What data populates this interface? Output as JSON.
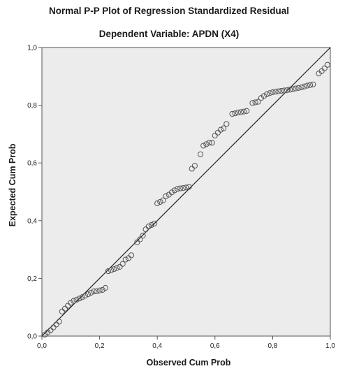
{
  "chart_data": {
    "type": "scatter",
    "title": "Normal P-P Plot of Regression Standardized Residual",
    "subtitle": "Dependent Variable: APDN (X4)",
    "xlabel": "Observed Cum Prob",
    "ylabel": "Expected Cum Prob",
    "xlim": [
      0,
      1
    ],
    "ylim": [
      0,
      1
    ],
    "x_ticks": [
      "0,0",
      "0,2",
      "0,4",
      "0,6",
      "0,8",
      "1,0"
    ],
    "y_ticks": [
      "0,0",
      "0,2",
      "0,4",
      "0,6",
      "0,8",
      "1,0"
    ],
    "reference_line": [
      [
        0,
        0
      ],
      [
        1,
        1
      ]
    ],
    "grid": false,
    "colors": {
      "plot_background": "#ececec",
      "marker": "#555555",
      "line": "#222222"
    },
    "points": [
      [
        0.01,
        0.005
      ],
      [
        0.02,
        0.013
      ],
      [
        0.03,
        0.02
      ],
      [
        0.04,
        0.03
      ],
      [
        0.05,
        0.04
      ],
      [
        0.06,
        0.05
      ],
      [
        0.07,
        0.085
      ],
      [
        0.08,
        0.095
      ],
      [
        0.09,
        0.105
      ],
      [
        0.1,
        0.115
      ],
      [
        0.11,
        0.122
      ],
      [
        0.12,
        0.126
      ],
      [
        0.13,
        0.13
      ],
      [
        0.14,
        0.135
      ],
      [
        0.15,
        0.14
      ],
      [
        0.16,
        0.145
      ],
      [
        0.17,
        0.15
      ],
      [
        0.18,
        0.155
      ],
      [
        0.19,
        0.155
      ],
      [
        0.2,
        0.158
      ],
      [
        0.21,
        0.16
      ],
      [
        0.22,
        0.167
      ],
      [
        0.23,
        0.225
      ],
      [
        0.24,
        0.228
      ],
      [
        0.25,
        0.232
      ],
      [
        0.26,
        0.236
      ],
      [
        0.27,
        0.24
      ],
      [
        0.28,
        0.25
      ],
      [
        0.29,
        0.265
      ],
      [
        0.3,
        0.27
      ],
      [
        0.31,
        0.28
      ],
      [
        0.33,
        0.325
      ],
      [
        0.34,
        0.335
      ],
      [
        0.35,
        0.348
      ],
      [
        0.36,
        0.37
      ],
      [
        0.37,
        0.38
      ],
      [
        0.38,
        0.385
      ],
      [
        0.39,
        0.39
      ],
      [
        0.4,
        0.46
      ],
      [
        0.41,
        0.465
      ],
      [
        0.42,
        0.47
      ],
      [
        0.43,
        0.485
      ],
      [
        0.44,
        0.49
      ],
      [
        0.45,
        0.498
      ],
      [
        0.46,
        0.505
      ],
      [
        0.47,
        0.51
      ],
      [
        0.48,
        0.512
      ],
      [
        0.49,
        0.513
      ],
      [
        0.5,
        0.515
      ],
      [
        0.51,
        0.517
      ],
      [
        0.52,
        0.58
      ],
      [
        0.53,
        0.59
      ],
      [
        0.55,
        0.63
      ],
      [
        0.56,
        0.66
      ],
      [
        0.57,
        0.665
      ],
      [
        0.58,
        0.67
      ],
      [
        0.59,
        0.67
      ],
      [
        0.6,
        0.695
      ],
      [
        0.61,
        0.705
      ],
      [
        0.62,
        0.715
      ],
      [
        0.63,
        0.72
      ],
      [
        0.64,
        0.735
      ],
      [
        0.66,
        0.77
      ],
      [
        0.67,
        0.772
      ],
      [
        0.68,
        0.775
      ],
      [
        0.69,
        0.776
      ],
      [
        0.7,
        0.778
      ],
      [
        0.71,
        0.78
      ],
      [
        0.73,
        0.808
      ],
      [
        0.74,
        0.81
      ],
      [
        0.75,
        0.812
      ],
      [
        0.76,
        0.825
      ],
      [
        0.77,
        0.832
      ],
      [
        0.78,
        0.838
      ],
      [
        0.79,
        0.842
      ],
      [
        0.8,
        0.845
      ],
      [
        0.81,
        0.847
      ],
      [
        0.82,
        0.848
      ],
      [
        0.83,
        0.85
      ],
      [
        0.84,
        0.851
      ],
      [
        0.85,
        0.852
      ],
      [
        0.86,
        0.854
      ],
      [
        0.87,
        0.856
      ],
      [
        0.88,
        0.858
      ],
      [
        0.89,
        0.86
      ],
      [
        0.9,
        0.862
      ],
      [
        0.91,
        0.865
      ],
      [
        0.92,
        0.868
      ],
      [
        0.93,
        0.87
      ],
      [
        0.94,
        0.872
      ],
      [
        0.96,
        0.91
      ],
      [
        0.97,
        0.918
      ],
      [
        0.98,
        0.928
      ],
      [
        0.99,
        0.94
      ]
    ]
  }
}
